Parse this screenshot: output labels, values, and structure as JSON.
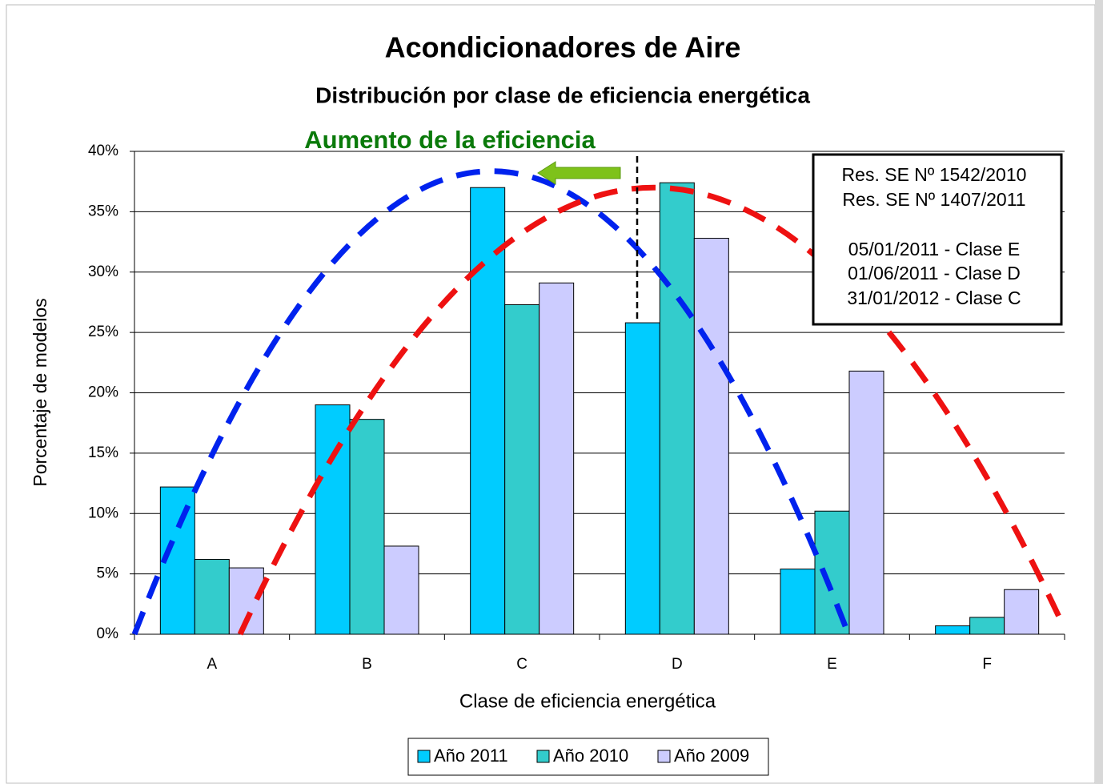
{
  "chart_data": {
    "type": "bar",
    "title": "Acondicionadores de Aire",
    "subtitle": "Distribución por clase de eficiencia energética",
    "x_label": "Clase de eficiencia energética",
    "y_label": "Porcentaje de modelos",
    "arrow_label": "Aumento de la eficiencia",
    "annotations": [
      "Res. SE Nº 1542/2010",
      "Res. SE Nº 1407/2011",
      "05/01/2011 - Clase E",
      "01/06/2011 - Clase D",
      "31/01/2012 - Clase C"
    ],
    "categories": [
      "A",
      "B",
      "C",
      "D",
      "E",
      "F"
    ],
    "series": [
      {
        "name": "Año 2011",
        "color": "#00ccff",
        "values": [
          12.2,
          19.0,
          37.0,
          25.8,
          5.4,
          0.7
        ]
      },
      {
        "name": "Año 2010",
        "color": "#33cccc",
        "values": [
          6.2,
          17.8,
          27.3,
          37.4,
          10.2,
          1.4
        ]
      },
      {
        "name": "Año 2009",
        "color": "#ccccff",
        "values": [
          5.5,
          7.3,
          29.1,
          32.8,
          21.8,
          3.7
        ]
      }
    ],
    "ylim": [
      0,
      40
    ],
    "yticks": [
      {
        "value": 0,
        "label": "0%"
      },
      {
        "value": 5,
        "label": "5%"
      },
      {
        "value": 10,
        "label": "10%"
      },
      {
        "value": 15,
        "label": "15%"
      },
      {
        "value": 20,
        "label": "20%"
      },
      {
        "value": 25,
        "label": "25%"
      },
      {
        "value": 30,
        "label": "30%"
      },
      {
        "value": 35,
        "label": "35%"
      },
      {
        "value": 40,
        "label": "40%"
      }
    ],
    "grid": true,
    "legend": "bottom"
  }
}
